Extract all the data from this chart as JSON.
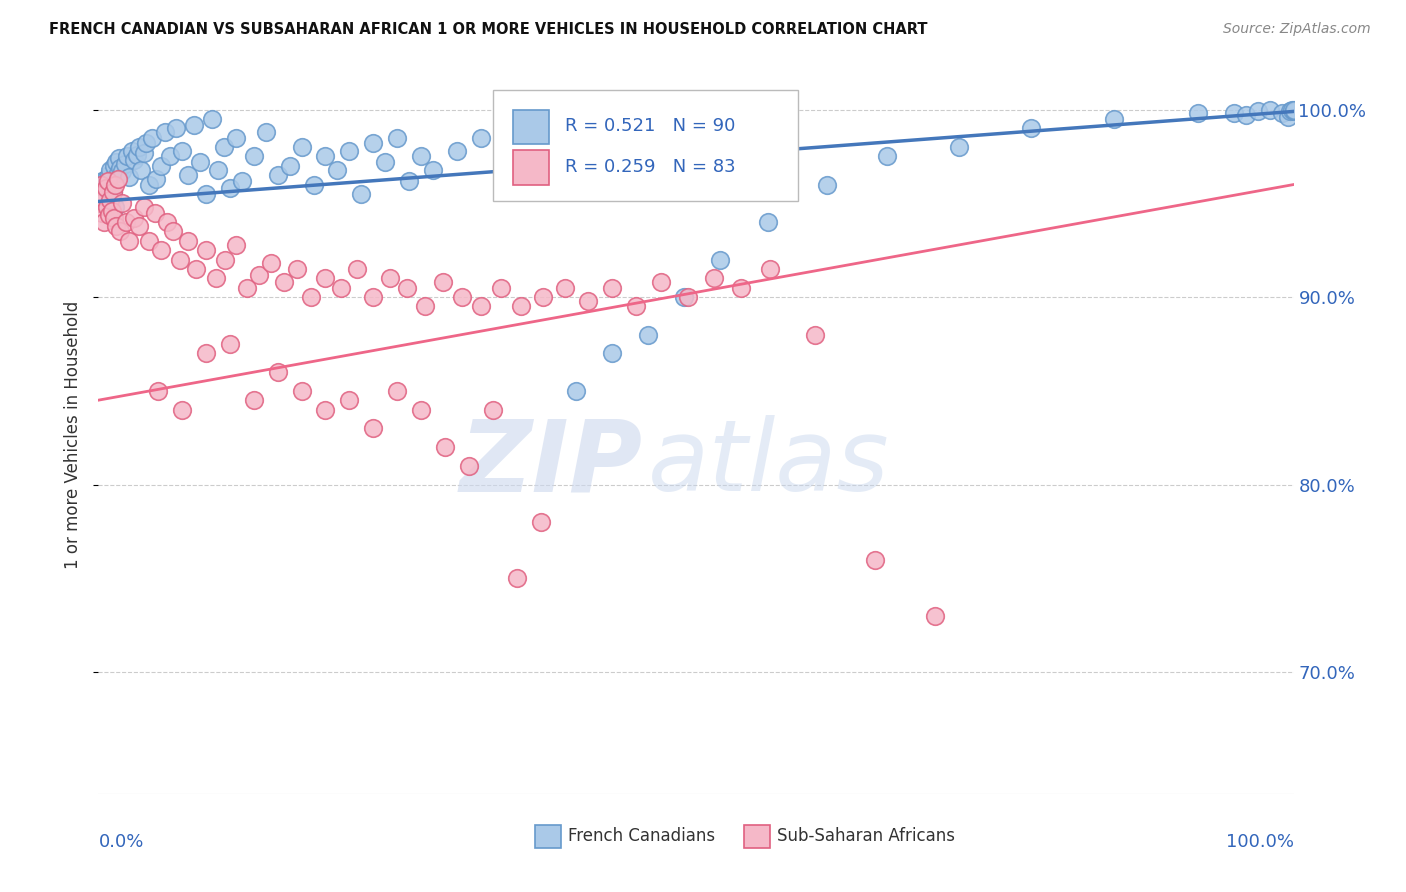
{
  "title": "FRENCH CANADIAN VS SUBSAHARAN AFRICAN 1 OR MORE VEHICLES IN HOUSEHOLD CORRELATION CHART",
  "source": "Source: ZipAtlas.com",
  "ylabel": "1 or more Vehicles in Household",
  "blue_R": 0.521,
  "blue_N": 90,
  "pink_R": 0.259,
  "pink_N": 83,
  "blue_color": "#aac9e8",
  "pink_color": "#f5b8c8",
  "blue_edge_color": "#6699cc",
  "pink_edge_color": "#e06080",
  "blue_line_color": "#4477bb",
  "pink_line_color": "#ee6688",
  "watermark_zip_color": "#d0dff0",
  "watermark_atlas_color": "#c0d4ec",
  "xmin": 0.0,
  "xmax": 1.0,
  "ymin": 0.635,
  "ymax": 1.018,
  "yticks": [
    0.7,
    0.8,
    0.9,
    1.0
  ],
  "ytick_labels": [
    "70.0%",
    "80.0%",
    "90.0%",
    "100.0%"
  ],
  "blue_x": [
    0.001,
    0.002,
    0.003,
    0.004,
    0.005,
    0.006,
    0.007,
    0.008,
    0.009,
    0.01,
    0.011,
    0.012,
    0.013,
    0.014,
    0.015,
    0.016,
    0.017,
    0.018,
    0.02,
    0.022,
    0.024,
    0.026,
    0.028,
    0.03,
    0.032,
    0.034,
    0.036,
    0.038,
    0.04,
    0.042,
    0.045,
    0.048,
    0.052,
    0.056,
    0.06,
    0.065,
    0.07,
    0.075,
    0.08,
    0.085,
    0.09,
    0.095,
    0.1,
    0.105,
    0.11,
    0.115,
    0.12,
    0.13,
    0.14,
    0.15,
    0.16,
    0.17,
    0.18,
    0.19,
    0.2,
    0.21,
    0.22,
    0.23,
    0.24,
    0.25,
    0.26,
    0.27,
    0.28,
    0.3,
    0.32,
    0.34,
    0.36,
    0.38,
    0.4,
    0.43,
    0.46,
    0.49,
    0.52,
    0.56,
    0.61,
    0.66,
    0.72,
    0.78,
    0.85,
    0.92,
    0.95,
    0.96,
    0.97,
    0.98,
    0.99,
    0.995,
    0.997,
    0.999,
    1.0,
    1.0
  ],
  "blue_y": [
    0.95,
    0.955,
    0.962,
    0.958,
    0.96,
    0.963,
    0.957,
    0.961,
    0.965,
    0.968,
    0.952,
    0.956,
    0.97,
    0.948,
    0.972,
    0.966,
    0.974,
    0.969,
    0.967,
    0.971,
    0.975,
    0.964,
    0.978,
    0.973,
    0.976,
    0.98,
    0.968,
    0.977,
    0.982,
    0.96,
    0.985,
    0.963,
    0.97,
    0.988,
    0.975,
    0.99,
    0.978,
    0.965,
    0.992,
    0.972,
    0.955,
    0.995,
    0.968,
    0.98,
    0.958,
    0.985,
    0.962,
    0.975,
    0.988,
    0.965,
    0.97,
    0.98,
    0.96,
    0.975,
    0.968,
    0.978,
    0.955,
    0.982,
    0.972,
    0.985,
    0.962,
    0.975,
    0.968,
    0.978,
    0.985,
    0.97,
    0.975,
    0.98,
    0.85,
    0.87,
    0.88,
    0.9,
    0.92,
    0.94,
    0.96,
    0.975,
    0.98,
    0.99,
    0.995,
    0.998,
    0.998,
    0.997,
    0.999,
    1.0,
    0.998,
    0.996,
    0.999,
    1.0,
    0.999,
    1.0
  ],
  "pink_x": [
    0.001,
    0.002,
    0.003,
    0.004,
    0.005,
    0.006,
    0.007,
    0.008,
    0.009,
    0.01,
    0.011,
    0.012,
    0.013,
    0.014,
    0.015,
    0.016,
    0.018,
    0.02,
    0.023,
    0.026,
    0.03,
    0.034,
    0.038,
    0.042,
    0.047,
    0.052,
    0.057,
    0.062,
    0.068,
    0.075,
    0.082,
    0.09,
    0.098,
    0.106,
    0.115,
    0.124,
    0.134,
    0.144,
    0.155,
    0.166,
    0.178,
    0.19,
    0.203,
    0.216,
    0.23,
    0.244,
    0.258,
    0.273,
    0.288,
    0.304,
    0.32,
    0.337,
    0.354,
    0.372,
    0.39,
    0.41,
    0.43,
    0.45,
    0.471,
    0.493,
    0.515,
    0.538,
    0.562,
    0.05,
    0.07,
    0.09,
    0.11,
    0.13,
    0.15,
    0.17,
    0.19,
    0.21,
    0.23,
    0.25,
    0.27,
    0.29,
    0.31,
    0.33,
    0.35,
    0.37,
    0.6,
    0.65,
    0.7
  ],
  "pink_y": [
    0.95,
    0.96,
    0.945,
    0.955,
    0.94,
    0.958,
    0.948,
    0.962,
    0.944,
    0.952,
    0.946,
    0.956,
    0.942,
    0.96,
    0.938,
    0.963,
    0.935,
    0.95,
    0.94,
    0.93,
    0.942,
    0.938,
    0.948,
    0.93,
    0.945,
    0.925,
    0.94,
    0.935,
    0.92,
    0.93,
    0.915,
    0.925,
    0.91,
    0.92,
    0.928,
    0.905,
    0.912,
    0.918,
    0.908,
    0.915,
    0.9,
    0.91,
    0.905,
    0.915,
    0.9,
    0.91,
    0.905,
    0.895,
    0.908,
    0.9,
    0.895,
    0.905,
    0.895,
    0.9,
    0.905,
    0.898,
    0.905,
    0.895,
    0.908,
    0.9,
    0.91,
    0.905,
    0.915,
    0.85,
    0.84,
    0.87,
    0.875,
    0.845,
    0.86,
    0.85,
    0.84,
    0.845,
    0.83,
    0.85,
    0.84,
    0.82,
    0.81,
    0.84,
    0.75,
    0.78,
    0.88,
    0.76,
    0.73
  ]
}
